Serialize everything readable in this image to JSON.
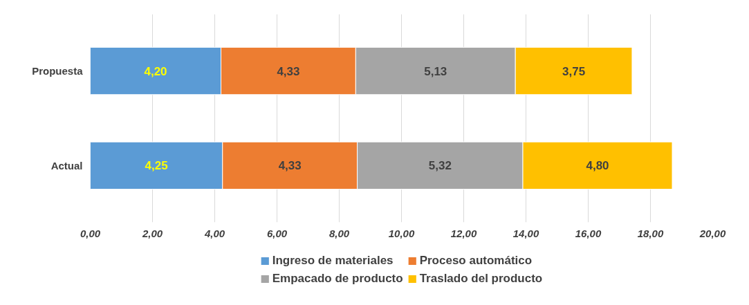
{
  "chart_data": {
    "type": "bar",
    "orientation": "horizontal",
    "stacked": true,
    "categories": [
      "Propuesta",
      "Actual"
    ],
    "series": [
      {
        "name": "Ingreso de materiales",
        "color": "#5b9bd5",
        "values": [
          4.2,
          4.25
        ],
        "value_labels": [
          "4,20",
          "4,25"
        ]
      },
      {
        "name": "Proceso automático",
        "color": "#ed7d31",
        "values": [
          4.33,
          4.33
        ],
        "value_labels": [
          "4,33",
          "4,33"
        ]
      },
      {
        "name": "Empacado de producto",
        "color": "#a5a5a5",
        "values": [
          5.13,
          5.32
        ],
        "value_labels": [
          "5,13",
          "5,32"
        ]
      },
      {
        "name": "Traslado del producto",
        "color": "#ffc000",
        "values": [
          3.75,
          4.8
        ],
        "value_labels": [
          "3,75",
          "4,80"
        ]
      }
    ],
    "xlim": [
      0,
      20
    ],
    "xticks": [
      {
        "value": 0,
        "label": "0,00"
      },
      {
        "value": 2,
        "label": "2,00"
      },
      {
        "value": 4,
        "label": "4,00"
      },
      {
        "value": 6,
        "label": "6,00"
      },
      {
        "value": 8,
        "label": "8,00"
      },
      {
        "value": 10,
        "label": "10,00"
      },
      {
        "value": 12,
        "label": "12,00"
      },
      {
        "value": 14,
        "label": "14,00"
      },
      {
        "value": 16,
        "label": "16,00"
      },
      {
        "value": 18,
        "label": "18,00"
      },
      {
        "value": 20,
        "label": "20,00"
      }
    ],
    "grid": "x",
    "legend": "bottom"
  }
}
